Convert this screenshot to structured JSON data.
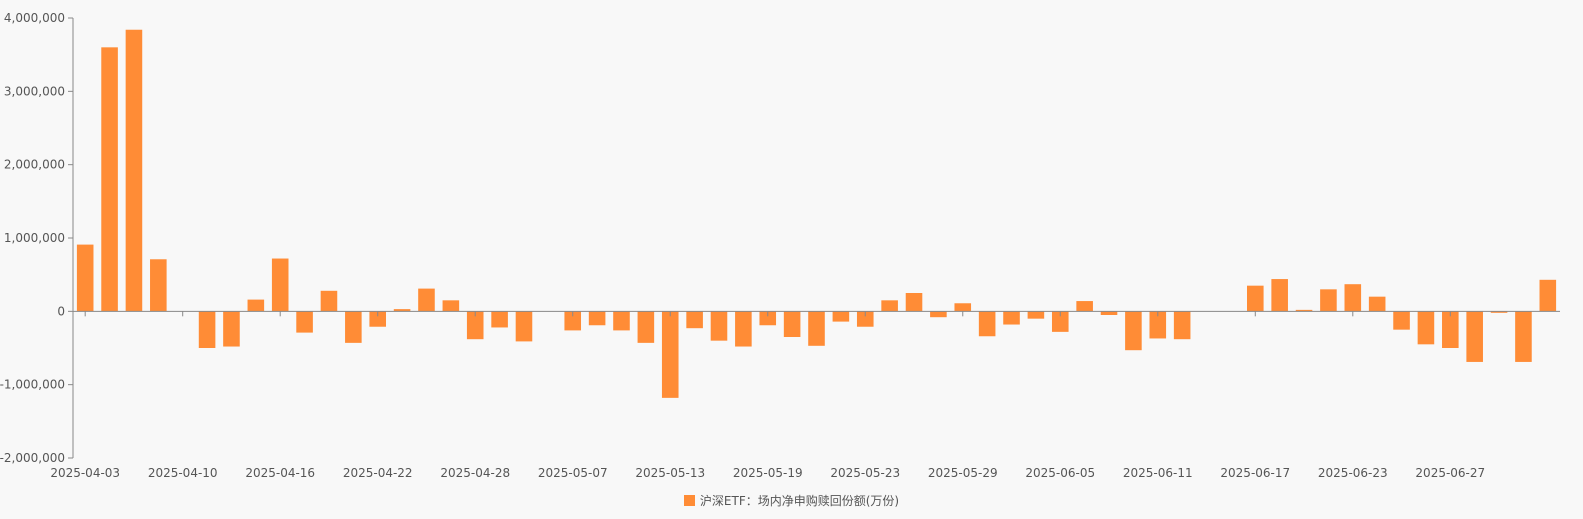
{
  "colors": {
    "bar": "#ff8c36",
    "axis": "#888888",
    "text": "#555555",
    "background": "#f8f8f8"
  },
  "chart_data": {
    "type": "bar",
    "title": "",
    "xlabel": "",
    "ylabel": "",
    "ylim": [
      -2000000,
      4000000
    ],
    "yticks": [
      -2000000,
      -1000000,
      0,
      1000000,
      2000000,
      3000000,
      4000000
    ],
    "ytick_labels": [
      "-2,000,000",
      "-1,000,000",
      "0",
      "1,000,000",
      "2,000,000",
      "3,000,000",
      "4,000,000"
    ],
    "grid": false,
    "legend_position": "bottom-center",
    "x_tick_labels": [
      {
        "index": 0,
        "label": "2025-04-03"
      },
      {
        "index": 4,
        "label": "2025-04-10"
      },
      {
        "index": 8,
        "label": "2025-04-16"
      },
      {
        "index": 12,
        "label": "2025-04-22"
      },
      {
        "index": 16,
        "label": "2025-04-28"
      },
      {
        "index": 20,
        "label": "2025-05-07"
      },
      {
        "index": 24,
        "label": "2025-05-13"
      },
      {
        "index": 28,
        "label": "2025-05-19"
      },
      {
        "index": 32,
        "label": "2025-05-23"
      },
      {
        "index": 36,
        "label": "2025-05-29"
      },
      {
        "index": 40,
        "label": "2025-06-05"
      },
      {
        "index": 44,
        "label": "2025-06-11"
      },
      {
        "index": 48,
        "label": "2025-06-17"
      },
      {
        "index": 52,
        "label": "2025-06-23"
      },
      {
        "index": 56,
        "label": "2025-06-27"
      }
    ],
    "series": [
      {
        "name": "沪深ETF：场内净申购赎回份额(万份)",
        "values": [
          910000,
          3600000,
          3840000,
          710000,
          0,
          -500000,
          -480000,
          160000,
          720000,
          -290000,
          280000,
          -430000,
          -210000,
          30000,
          310000,
          150000,
          -380000,
          -220000,
          -410000,
          0,
          -260000,
          -190000,
          -260000,
          -430000,
          -1180000,
          -230000,
          -400000,
          -480000,
          -190000,
          -350000,
          -470000,
          -140000,
          -210000,
          150000,
          250000,
          -80000,
          110000,
          -340000,
          -180000,
          -100000,
          -280000,
          140000,
          -50000,
          -530000,
          -370000,
          -380000,
          0,
          0,
          350000,
          440000,
          20000,
          300000,
          370000,
          200000,
          -250000,
          -450000,
          -500000,
          -690000,
          -20000,
          -690000,
          430000
        ]
      }
    ]
  }
}
